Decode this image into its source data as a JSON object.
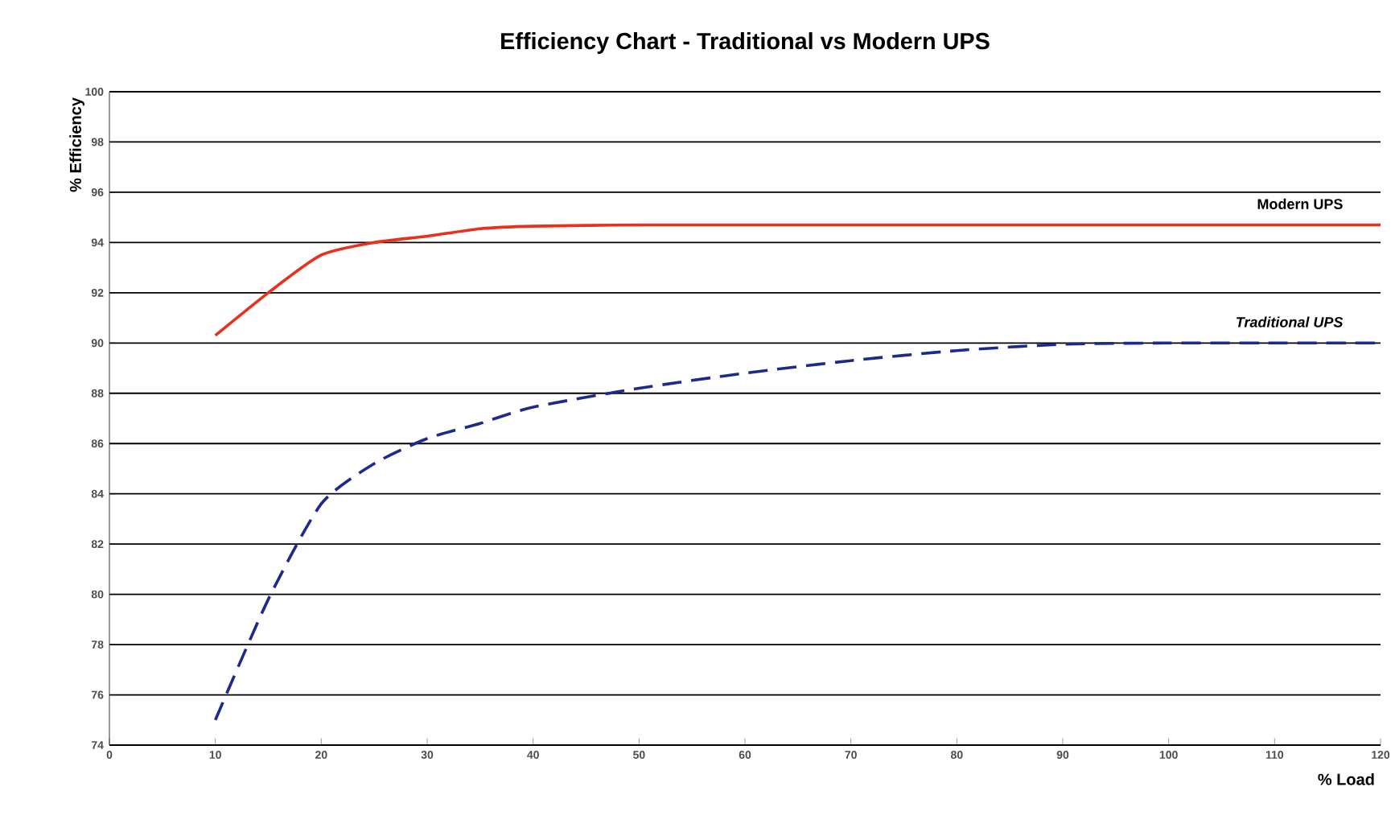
{
  "chart_data": {
    "type": "line",
    "title": "Efficiency Chart - Traditional vs Modern UPS",
    "xlabel": "% Load",
    "ylabel": "% Efficiency",
    "xlim": [
      0,
      120
    ],
    "xticks": [
      0,
      10,
      20,
      30,
      40,
      50,
      60,
      70,
      80,
      90,
      100,
      110,
      120
    ],
    "ylim": [
      74,
      100
    ],
    "yticks": [
      74,
      76,
      78,
      80,
      82,
      84,
      86,
      88,
      90,
      92,
      94,
      96,
      98,
      100
    ],
    "grid": "y",
    "series": [
      {
        "name": "Modern UPS",
        "color": "#e8301c",
        "line_style": "solid",
        "x": [
          10,
          15,
          20,
          25,
          30,
          35,
          40,
          50,
          60,
          70,
          80,
          90,
          100,
          110,
          120
        ],
        "values": [
          90.3,
          92.0,
          93.5,
          94.0,
          94.25,
          94.55,
          94.65,
          94.7,
          94.7,
          94.7,
          94.7,
          94.7,
          94.7,
          94.7,
          94.7
        ]
      },
      {
        "name": "Traditional UPS",
        "color": "#1c2a8c",
        "line_style": "dashed",
        "x": [
          10,
          15,
          20,
          25,
          30,
          35,
          40,
          50,
          60,
          70,
          80,
          90,
          100,
          110,
          120
        ],
        "values": [
          75.0,
          79.8,
          83.6,
          85.2,
          86.2,
          86.8,
          87.45,
          88.2,
          88.8,
          89.3,
          89.7,
          89.95,
          90.0,
          90.0,
          90.0
        ]
      }
    ]
  }
}
